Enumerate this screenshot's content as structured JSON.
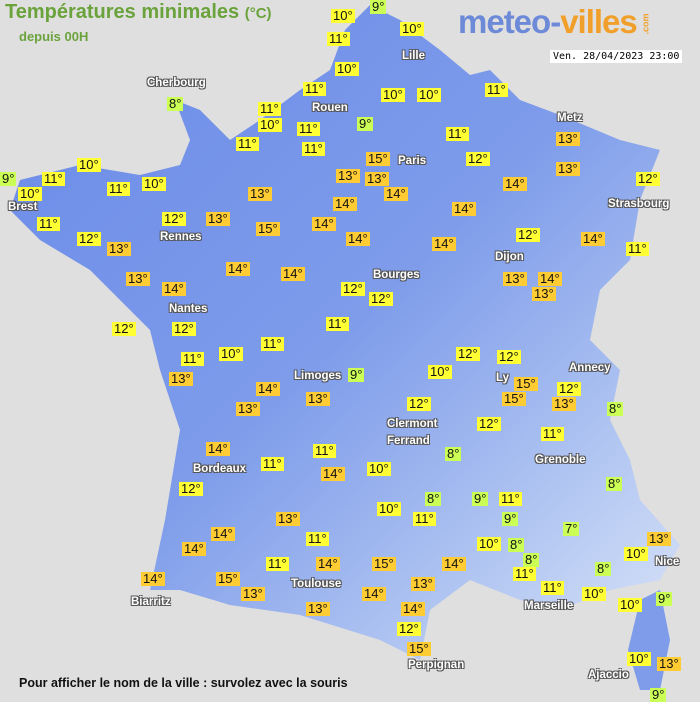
{
  "header": {
    "title": "Températures minimales",
    "unit": "(°C)",
    "subtitle": "depuis 00H"
  },
  "logo": {
    "part1": "meteo-",
    "part2": "villes",
    "part3": ".com"
  },
  "timestamp": "Ven. 28/04/2023 23:00",
  "footer": "Pour afficher le nom de la ville : survolez avec la souris",
  "colors": {
    "land": "#6f8fe8",
    "cold": "#ccff55",
    "mild": "#ffff33",
    "warm": "#ffcc33",
    "title": "#6aa33c"
  },
  "cities": [
    "Cherbourg",
    "Lille",
    "Rouen",
    "Metz",
    "Paris",
    "Brest",
    "Rennes",
    "Strasbourg",
    "Dijon",
    "Bourges",
    "Nantes",
    "Annecy",
    "Limoges",
    "Ly",
    "Clermont",
    "Ferrand",
    "Grenoble",
    "Bordeaux",
    "Nice",
    "Toulouse",
    "Biarritz",
    "Marseille",
    "Perpignan",
    "Ajaccio"
  ],
  "temperatures": [
    "10°",
    "9°",
    "11°",
    "10°",
    "10°",
    "11°",
    "11°",
    "10°",
    "11°",
    "11°",
    "11°",
    "9°",
    "10°",
    "10°",
    "11°",
    "11°",
    "15°",
    "12°",
    "13°",
    "13°",
    "14°",
    "14°",
    "13°",
    "13°",
    "12°",
    "14°",
    "14°",
    "13°",
    "15°",
    "14°",
    "14°",
    "14°",
    "12°",
    "14°",
    "11°",
    "13°",
    "14°",
    "13°",
    "12°",
    "12°",
    "11°",
    "13°",
    "12°",
    "9°",
    "10°",
    "11°",
    "10°",
    "11°",
    "10°",
    "8°",
    "11°",
    "12°",
    "13°",
    "13°",
    "14°",
    "14°",
    "14°",
    "12°",
    "12°",
    "11°",
    "11°",
    "10°",
    "13°",
    "14°",
    "13°",
    "13°",
    "9°",
    "10°",
    "12°",
    "12°",
    "15°",
    "15°",
    "12°",
    "13°",
    "8°",
    "12°",
    "12°",
    "11°",
    "8°",
    "14°",
    "11°",
    "11°",
    "14°",
    "10°",
    "12°",
    "8°",
    "9°",
    "11°",
    "10°",
    "11°",
    "9°",
    "7°",
    "8°",
    "13°",
    "11°",
    "14°",
    "14°",
    "10°",
    "8°",
    "8°",
    "11°",
    "11°",
    "8°",
    "10°",
    "13°",
    "10°",
    "10°",
    "9°",
    "14°",
    "15°",
    "13°",
    "11°",
    "14°",
    "15°",
    "14°",
    "13°",
    "14°",
    "13°",
    "14°",
    "12°",
    "15°",
    "10°",
    "13°",
    "9°"
  ]
}
